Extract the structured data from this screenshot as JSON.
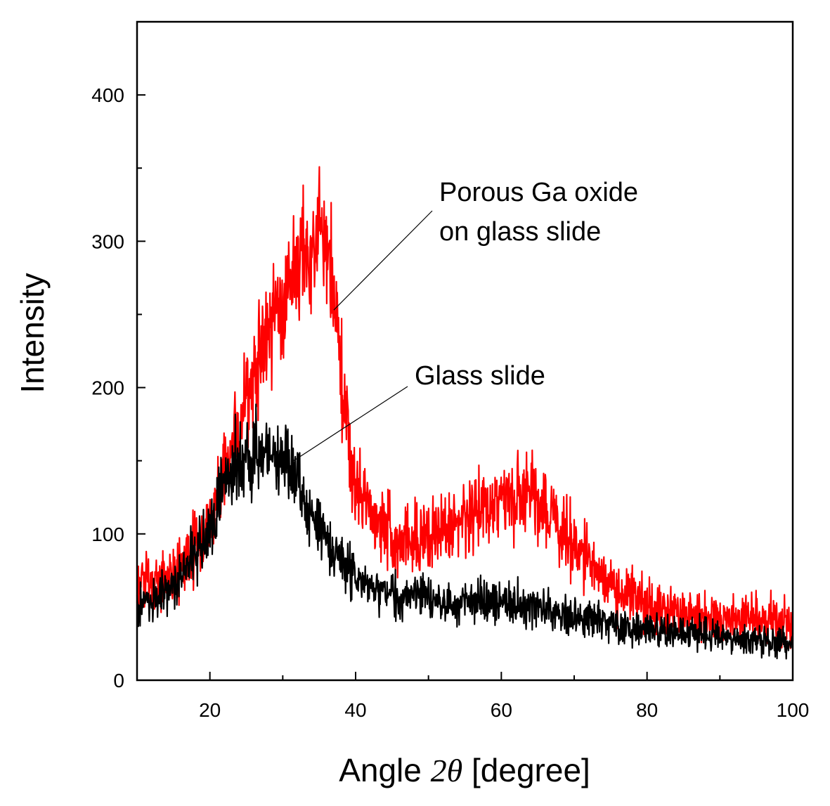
{
  "chart_data": {
    "type": "line",
    "xlabel_prefix": "Angle ",
    "xlabel_symbol": "2θ",
    "xlabel_suffix": " [degree]",
    "ylabel": "Intensity",
    "xlim": [
      10,
      100
    ],
    "ylim": [
      0,
      450
    ],
    "x_ticks": [
      20,
      40,
      60,
      80,
      100
    ],
    "x_minor_ticks": [
      30,
      50,
      70,
      90
    ],
    "y_ticks": [
      0,
      100,
      200,
      300,
      400
    ],
    "y_minor_ticks": [
      50,
      150,
      250,
      350
    ],
    "grid": false,
    "legend": "none",
    "annotations": [
      {
        "lines": [
          "Porous Ga oxide",
          "on glass slide"
        ],
        "series_index": 0,
        "point_x": 37,
        "point_y": 253
      },
      {
        "lines": [
          "Glass slide"
        ],
        "series_index": 1,
        "point_x": 31.5,
        "point_y": 150
      }
    ],
    "series": [
      {
        "color": "#ff0000",
        "noise": 12,
        "x": [
          10,
          12,
          14,
          16,
          18,
          20,
          22,
          24,
          26,
          28,
          30,
          32,
          34,
          35,
          36,
          37,
          38,
          39,
          40,
          42,
          44,
          46,
          48,
          50,
          52,
          54,
          56,
          58,
          60,
          62,
          64,
          66,
          68,
          70,
          72,
          74,
          76,
          78,
          80,
          82,
          84,
          86,
          88,
          90,
          92,
          94,
          96,
          98,
          100
        ],
        "y": [
          65,
          68,
          70,
          76,
          88,
          105,
          140,
          175,
          210,
          240,
          262,
          282,
          295,
          305,
          295,
          262,
          210,
          160,
          130,
          115,
          105,
          98,
          96,
          98,
          102,
          106,
          112,
          118,
          124,
          128,
          126,
          118,
          105,
          92,
          80,
          70,
          62,
          56,
          52,
          49,
          47,
          45,
          44,
          43,
          43,
          42,
          42,
          41,
          40
        ]
      },
      {
        "color": "#000000",
        "noise": 10,
        "x": [
          10,
          12,
          14,
          16,
          18,
          20,
          22,
          24,
          26,
          28,
          30,
          32,
          34,
          36,
          38,
          40,
          42,
          44,
          46,
          48,
          50,
          52,
          54,
          56,
          58,
          60,
          62,
          64,
          66,
          68,
          70,
          72,
          74,
          76,
          78,
          80,
          82,
          84,
          86,
          88,
          90,
          92,
          94,
          96,
          98,
          100
        ],
        "y": [
          50,
          56,
          62,
          72,
          85,
          105,
          135,
          150,
          155,
          155,
          150,
          135,
          112,
          95,
          80,
          68,
          63,
          60,
          58,
          56,
          55,
          54,
          53,
          52,
          53,
          54,
          52,
          50,
          48,
          46,
          44,
          42,
          40,
          38,
          36,
          35,
          34,
          33,
          32,
          31,
          30,
          29,
          28,
          27,
          26,
          25
        ]
      }
    ]
  }
}
